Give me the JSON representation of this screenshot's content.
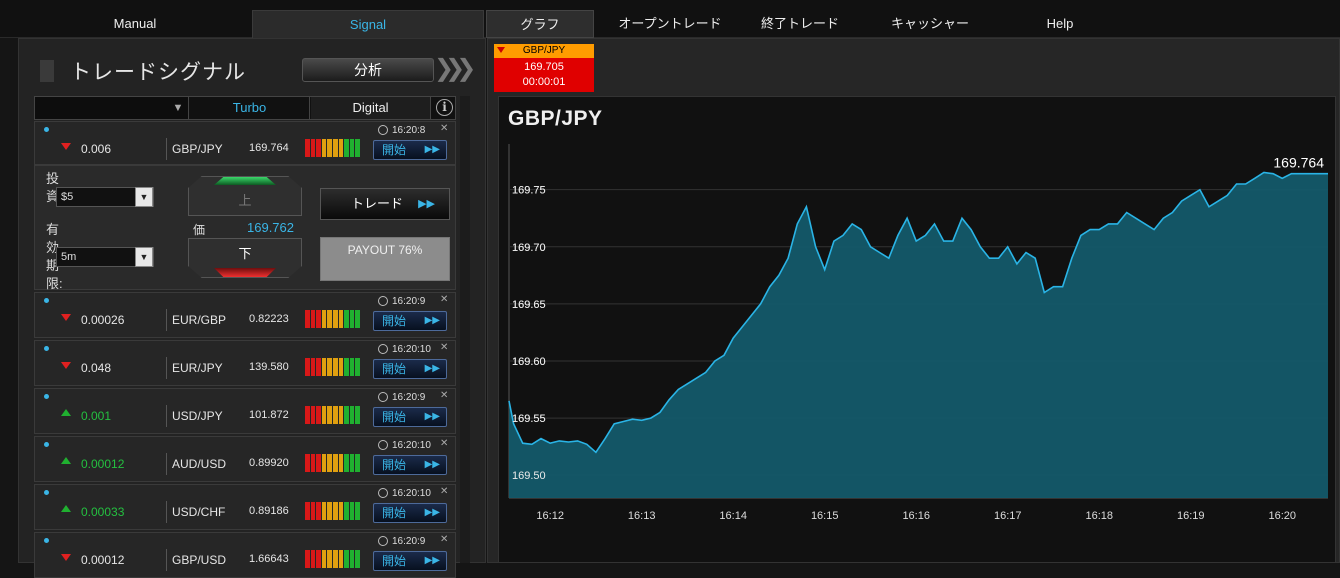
{
  "nav": {
    "manual": "Manual",
    "signal": "Signal",
    "graph": "グラフ",
    "open_trade": "オープントレード",
    "closed_trade": "終了トレード",
    "cashier": "キャッシャー",
    "help": "Help"
  },
  "panel": {
    "title": "トレードシグナル",
    "analyze_label": "分析",
    "tab_turbo": "Turbo",
    "tab_digital": "Digital",
    "info_icon": "i"
  },
  "start_label": "開始",
  "ff_glyph": "▶▶",
  "expanded": {
    "invest_label": "投資:",
    "invest_value": "$5",
    "expiry_label": "有効期限:",
    "expiry_value": "5m",
    "up_label": "上",
    "down_label": "下",
    "price_label": "価",
    "price_value": "169.762",
    "trade_label": "トレード",
    "payout_label": "PAYOUT 76%"
  },
  "signals": [
    {
      "direction": "down",
      "change": "0.006",
      "pair": "GBP/JPY",
      "price": "169.764",
      "time": "16:20:8"
    },
    {
      "direction": "down",
      "change": "0.00026",
      "pair": "EUR/GBP",
      "price": "0.82223",
      "time": "16:20:9"
    },
    {
      "direction": "down",
      "change": "0.048",
      "pair": "EUR/JPY",
      "price": "139.580",
      "time": "16:20:10"
    },
    {
      "direction": "up",
      "change": "0.001",
      "pair": "USD/JPY",
      "price": "101.872",
      "time": "16:20:9"
    },
    {
      "direction": "up",
      "change": "0.00012",
      "pair": "AUD/USD",
      "price": "0.89920",
      "time": "16:20:10"
    },
    {
      "direction": "up",
      "change": "0.00033",
      "pair": "USD/CHF",
      "price": "0.89186",
      "time": "16:20:10"
    },
    {
      "direction": "down",
      "change": "0.00012",
      "pair": "GBP/USD",
      "price": "1.66643",
      "time": "16:20:9"
    }
  ],
  "strength_bar_colors": [
    "#d81818",
    "#d81818",
    "#d81818",
    "#e0a010",
    "#e0a010",
    "#e0a010",
    "#e0a010",
    "#20b030",
    "#20b030",
    "#20b030"
  ],
  "colors": {
    "accent": "#3ab5e6",
    "down": "#e02020",
    "up": "#20b030"
  },
  "ticker_chip": {
    "pair": "GBP/JPY",
    "price": "169.705",
    "countdown": "00:00:01"
  },
  "chart_data": {
    "type": "area",
    "title": "GBP/JPY",
    "last_price": "169.764",
    "ylim": [
      169.48,
      169.79
    ],
    "y_ticks": [
      "169.50",
      "169.55",
      "169.60",
      "169.65",
      "169.70",
      "169.75"
    ],
    "x_ticks": [
      "16:12",
      "16:13",
      "16:14",
      "16:15",
      "16:16",
      "16:17",
      "16:18",
      "16:19",
      "16:20"
    ],
    "x_minutes": [
      11.55,
      11.6,
      11.7,
      11.8,
      11.9,
      12.0,
      12.1,
      12.2,
      12.3,
      12.4,
      12.5,
      12.6,
      12.7,
      12.8,
      12.9,
      13.0,
      13.1,
      13.2,
      13.3,
      13.4,
      13.5,
      13.6,
      13.7,
      13.8,
      13.9,
      14.0,
      14.1,
      14.2,
      14.3,
      14.4,
      14.5,
      14.6,
      14.7,
      14.8,
      14.9,
      15.0,
      15.1,
      15.2,
      15.3,
      15.4,
      15.5,
      15.6,
      15.7,
      15.8,
      15.9,
      16.0,
      16.1,
      16.2,
      16.3,
      16.4,
      16.5,
      16.6,
      16.7,
      16.8,
      16.9,
      17.0,
      17.1,
      17.2,
      17.3,
      17.4,
      17.5,
      17.6,
      17.7,
      17.8,
      17.9,
      18.0,
      18.1,
      18.2,
      18.3,
      18.4,
      18.5,
      18.6,
      18.7,
      18.8,
      18.9,
      19.0,
      19.1,
      19.2,
      19.3,
      19.4,
      19.5,
      19.6,
      19.7,
      19.8,
      19.9,
      20.0,
      20.1,
      20.2,
      20.3,
      20.4,
      20.5
    ],
    "values": [
      169.565,
      169.545,
      169.528,
      169.527,
      169.532,
      169.528,
      169.53,
      169.529,
      169.53,
      169.527,
      169.52,
      169.532,
      169.545,
      169.547,
      169.549,
      169.548,
      169.55,
      169.555,
      169.566,
      169.575,
      169.58,
      169.585,
      169.59,
      169.6,
      169.605,
      169.62,
      169.63,
      169.64,
      169.65,
      169.665,
      169.675,
      169.69,
      169.72,
      169.735,
      169.7,
      169.68,
      169.705,
      169.71,
      169.72,
      169.715,
      169.7,
      169.695,
      169.69,
      169.71,
      169.725,
      169.705,
      169.71,
      169.72,
      169.705,
      169.705,
      169.725,
      169.715,
      169.7,
      169.69,
      169.69,
      169.7,
      169.685,
      169.695,
      169.69,
      169.66,
      169.665,
      169.665,
      169.69,
      169.71,
      169.715,
      169.715,
      169.72,
      169.72,
      169.73,
      169.725,
      169.72,
      169.715,
      169.725,
      169.73,
      169.74,
      169.745,
      169.75,
      169.735,
      169.74,
      169.745,
      169.755,
      169.755,
      169.76,
      169.765,
      169.764,
      169.76,
      169.764,
      169.764,
      169.764,
      169.764,
      169.764
    ],
    "series_color": "#2ab4e6",
    "fill_color": "#145a6a",
    "grid": "horizontal"
  }
}
